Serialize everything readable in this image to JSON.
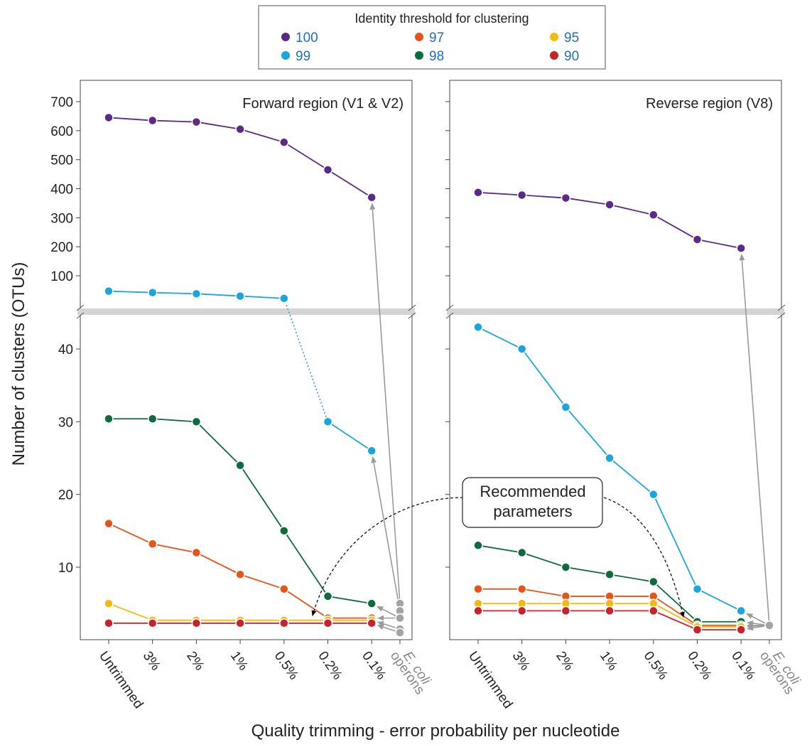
{
  "chart_data": {
    "type": "line",
    "ylabel": "Number of clusters (OTUs)",
    "xlabel": "Quality trimming - error probability per nucleotide",
    "categories": [
      "Untrimmed",
      "3%",
      "2%",
      "1%",
      "0.5%",
      "0.2%",
      "0.1%"
    ],
    "ecoli_label": [
      "E. coli",
      "operons"
    ],
    "legend": {
      "title": "Identity threshold for clustering",
      "entries": [
        {
          "label": "100",
          "color": "#5b2a86"
        },
        {
          "label": "97",
          "color": "#e8531a"
        },
        {
          "label": "95",
          "color": "#f5b90f"
        },
        {
          "label": "99",
          "color": "#1aa6dc"
        },
        {
          "label": "98",
          "color": "#0e6b3e"
        },
        {
          "label": "90",
          "color": "#c8232a"
        }
      ]
    },
    "annotation": [
      "Recommended",
      "parameters"
    ],
    "y_upper": {
      "range": [
        0,
        760
      ],
      "ticks": [
        100,
        200,
        300,
        400,
        500,
        600,
        700
      ]
    },
    "y_lower": {
      "range": [
        0,
        46
      ],
      "ticks": [
        10,
        20,
        30,
        40
      ]
    },
    "panels": [
      {
        "title": "Forward region (V1 & V2)",
        "ecoli": [
          5,
          4,
          3,
          3,
          1.5,
          1
        ],
        "series": [
          {
            "name": "100",
            "color": "#5b2a86",
            "segment": "upper",
            "values": [
              645,
              635,
              630,
              605,
              560,
              465,
              370
            ]
          },
          {
            "name": "99",
            "color": "#1aa6dc",
            "segment": "split",
            "values": [
              47,
              42,
              38,
              30,
              22,
              30,
              26
            ]
          },
          {
            "name": "98",
            "color": "#0e6b3e",
            "segment": "lower",
            "values": [
              30.4,
              30.4,
              30,
              24,
              15,
              6,
              5
            ]
          },
          {
            "name": "97",
            "color": "#e8531a",
            "segment": "lower",
            "values": [
              16,
              13.2,
              12,
              9,
              7,
              3,
              3
            ]
          },
          {
            "name": "95",
            "color": "#f5b90f",
            "segment": "lower",
            "values": [
              5,
              2.7,
              2.7,
              2.7,
              2.7,
              2.7,
              2.7
            ]
          },
          {
            "name": "90",
            "color": "#c8232a",
            "segment": "lower",
            "values": [
              2.3,
              2.3,
              2.3,
              2.3,
              2.3,
              2.3,
              2.3
            ]
          }
        ]
      },
      {
        "title": "Reverse region (V8)",
        "ecoli": [
          2,
          2,
          2,
          2,
          2,
          2
        ],
        "series": [
          {
            "name": "100",
            "color": "#5b2a86",
            "segment": "upper",
            "values": [
              387,
              378,
              368,
              345,
              310,
              225,
              195
            ]
          },
          {
            "name": "99",
            "color": "#1aa6dc",
            "segment": "lower",
            "values": [
              43,
              40,
              32,
              25,
              20,
              7,
              4
            ]
          },
          {
            "name": "98",
            "color": "#0e6b3e",
            "segment": "lower",
            "values": [
              13,
              12,
              10,
              9,
              8,
              2.5,
              2.5
            ]
          },
          {
            "name": "97",
            "color": "#e8531a",
            "segment": "lower",
            "values": [
              7,
              7,
              6,
              6,
              6,
              2,
              2
            ]
          },
          {
            "name": "95",
            "color": "#f5b90f",
            "segment": "lower",
            "values": [
              5,
              5,
              5,
              5,
              5,
              1.8,
              1.8
            ]
          },
          {
            "name": "90",
            "color": "#c8232a",
            "segment": "lower",
            "values": [
              4,
              4,
              4,
              4,
              4,
              1.4,
              1.4
            ]
          }
        ]
      }
    ]
  }
}
